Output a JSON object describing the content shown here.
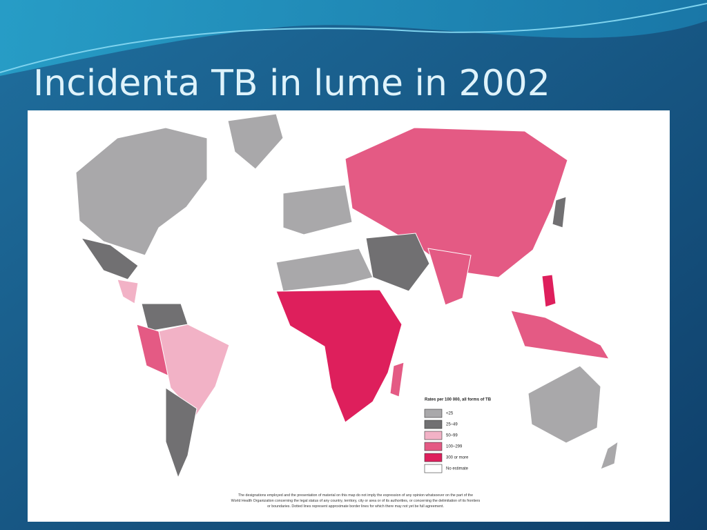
{
  "header": {
    "title": "Incidenta TB in lume in 2002"
  },
  "legend": {
    "title": "Rates per 100 000, all forms of TB",
    "items": [
      {
        "label": "<25",
        "color": "#a9a8aa"
      },
      {
        "label": "25–49",
        "color": "#717072"
      },
      {
        "label": "50–99",
        "color": "#f2b2c6"
      },
      {
        "label": "100–299",
        "color": "#e45a84"
      },
      {
        "label": "300 or more",
        "color": "#de1f5c"
      },
      {
        "label": "No estimate",
        "color": "#ffffff"
      }
    ]
  },
  "disclaimer": [
    "The designations employed and the presentation of material on this map do not imply the expression of any opinion whatsoever on the part of the",
    "World Health Organization concerning the legal status of any country, territory, city or area or of its authorities, or concerning the delimitation of its frontiers",
    "or boundaries. Dotted lines represent approximate border lines for which there may not yet be full agreement."
  ]
}
